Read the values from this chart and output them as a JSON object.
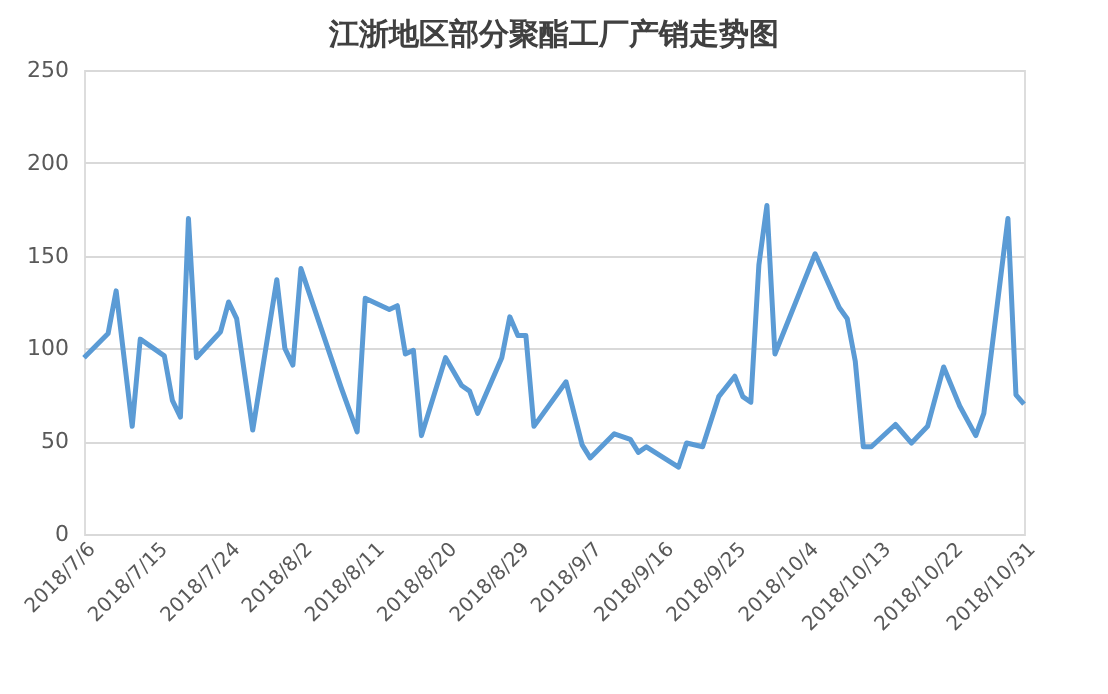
{
  "chart_data": {
    "type": "line",
    "title": "江浙地区部分聚酯工厂产销走势图",
    "x": [
      "2018-07-06",
      "2018-07-09",
      "2018-07-10",
      "2018-07-12",
      "2018-07-13",
      "2018-07-16",
      "2018-07-17",
      "2018-07-18",
      "2018-07-19",
      "2018-07-20",
      "2018-07-23",
      "2018-07-24",
      "2018-07-25",
      "2018-07-27",
      "2018-07-30",
      "2018-07-31",
      "2018-08-01",
      "2018-08-02",
      "2018-08-07",
      "2018-08-09",
      "2018-08-10",
      "2018-08-13",
      "2018-08-14",
      "2018-08-15",
      "2018-08-16",
      "2018-08-17",
      "2018-08-20",
      "2018-08-22",
      "2018-08-23",
      "2018-08-24",
      "2018-08-27",
      "2018-08-28",
      "2018-08-29",
      "2018-08-30",
      "2018-08-31",
      "2018-09-04",
      "2018-09-06",
      "2018-09-07",
      "2018-09-10",
      "2018-09-12",
      "2018-09-13",
      "2018-09-14",
      "2018-09-18",
      "2018-09-19",
      "2018-09-21",
      "2018-09-23",
      "2018-09-25",
      "2018-09-26",
      "2018-09-27",
      "2018-09-28",
      "2018-09-29",
      "2018-09-30",
      "2018-10-05",
      "2018-10-08",
      "2018-10-09",
      "2018-10-10",
      "2018-10-11",
      "2018-10-12",
      "2018-10-15",
      "2018-10-17",
      "2018-10-19",
      "2018-10-21",
      "2018-10-23",
      "2018-10-25",
      "2018-10-26",
      "2018-10-29",
      "2018-10-30",
      "2018-10-31"
    ],
    "series": [
      {
        "color": "#5b9bd5",
        "values": [
          95,
          108,
          131,
          58,
          105,
          96,
          72,
          63,
          170,
          95,
          109,
          125,
          116,
          56,
          137,
          100,
          91,
          143,
          79,
          55,
          127,
          121,
          123,
          97,
          99,
          53,
          95,
          80,
          77,
          65,
          95,
          117,
          107,
          107,
          58,
          82,
          48,
          41,
          54,
          51,
          44,
          47,
          36,
          49,
          47,
          74,
          85,
          74,
          71,
          145,
          177,
          97,
          151,
          122,
          116,
          93,
          47,
          47,
          59,
          49,
          58,
          90,
          69,
          53,
          65,
          170,
          75,
          70
        ]
      }
    ],
    "xlim": [
      "2018-07-06",
      "2018-10-31"
    ],
    "xticks": [
      {
        "value": "2018-07-06",
        "label": "2018/7/6"
      },
      {
        "value": "2018-07-15",
        "label": "2018/7/15"
      },
      {
        "value": "2018-07-24",
        "label": "2018/7/24"
      },
      {
        "value": "2018-08-02",
        "label": "2018/8/2"
      },
      {
        "value": "2018-08-11",
        "label": "2018/8/11"
      },
      {
        "value": "2018-08-20",
        "label": "2018/8/20"
      },
      {
        "value": "2018-08-29",
        "label": "2018/8/29"
      },
      {
        "value": "2018-09-07",
        "label": "2018/9/7"
      },
      {
        "value": "2018-09-16",
        "label": "2018/9/16"
      },
      {
        "value": "2018-09-25",
        "label": "2018/9/25"
      },
      {
        "value": "2018-10-04",
        "label": "2018/10/4"
      },
      {
        "value": "2018-10-13",
        "label": "2018/10/13"
      },
      {
        "value": "2018-10-22",
        "label": "2018/10/22"
      },
      {
        "value": "2018-10-31",
        "label": "2018/10/31"
      }
    ],
    "ylim": [
      0,
      250
    ],
    "yticks": [
      0,
      50,
      100,
      150,
      200,
      250
    ],
    "grid": "y",
    "marker": "none",
    "line_style": "solid"
  }
}
